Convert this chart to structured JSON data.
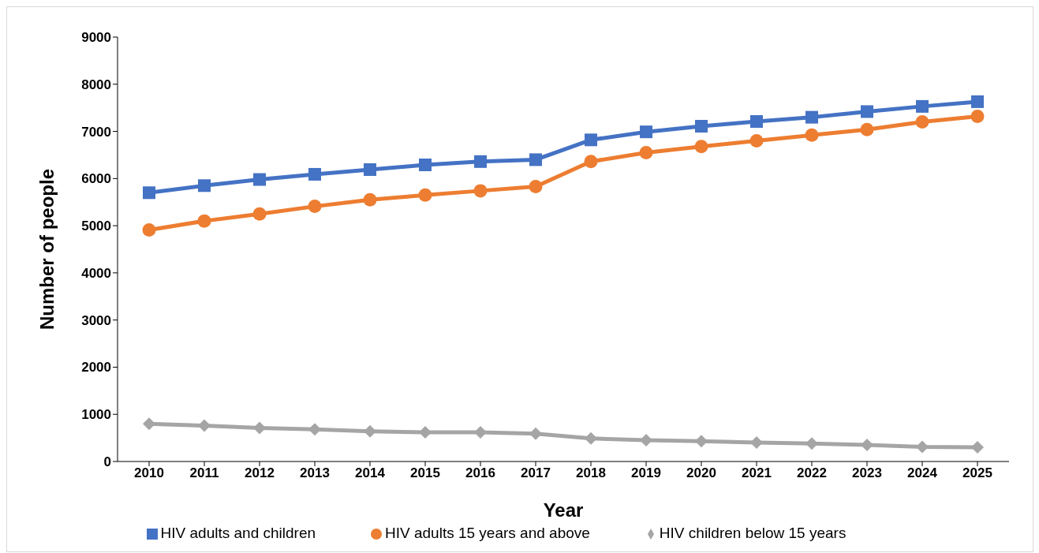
{
  "chart_data": {
    "type": "line",
    "xlabel": "Year",
    "ylabel": "Number of people",
    "categories": [
      "2010",
      "2011",
      "2012",
      "2013",
      "2014",
      "2015",
      "2016",
      "2017",
      "2018",
      "2019",
      "2020",
      "2021",
      "2022",
      "2023",
      "2024",
      "2025"
    ],
    "series": [
      {
        "name": "HIV adults and children",
        "color": "#4472c4",
        "marker": "square",
        "values": [
          5700,
          5850,
          5980,
          6090,
          6190,
          6290,
          6360,
          6400,
          6820,
          6990,
          7110,
          7210,
          7300,
          7420,
          7530,
          7630
        ]
      },
      {
        "name": "HIV adults 15 years and above",
        "color": "#ed7d31",
        "marker": "circle",
        "values": [
          4910,
          5100,
          5250,
          5410,
          5550,
          5650,
          5740,
          5830,
          6360,
          6550,
          6680,
          6800,
          6920,
          7040,
          7200,
          7320
        ]
      },
      {
        "name": "HIV children below 15 years",
        "color": "#a5a5a5",
        "marker": "diamond",
        "values": [
          800,
          760,
          710,
          680,
          640,
          620,
          620,
          590,
          490,
          450,
          430,
          400,
          380,
          350,
          310,
          300
        ]
      }
    ],
    "ylim": [
      0,
      9000
    ],
    "yticks": [
      0,
      1000,
      2000,
      3000,
      4000,
      5000,
      6000,
      7000,
      8000,
      9000
    ],
    "grid": false,
    "legend": "bottom",
    "line_style": "solid"
  }
}
